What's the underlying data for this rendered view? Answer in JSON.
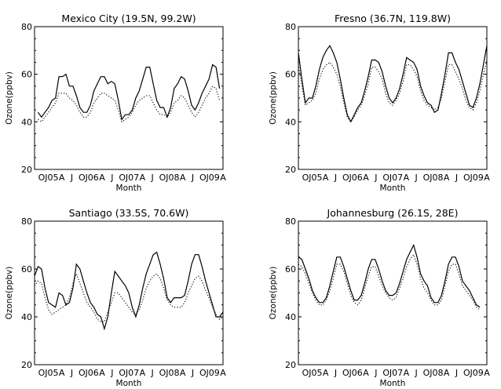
{
  "chart_data": [
    {
      "type": "line",
      "title": "Mexico City (19.5N, 99.2W)",
      "xlabel": "Month",
      "ylabel": "Ozone(ppbv)",
      "ylim": [
        20,
        80
      ],
      "yticks": [
        20,
        40,
        60,
        80
      ],
      "xtick_labels": [
        "O",
        "J05",
        "A",
        "J",
        "O",
        "J06",
        "A",
        "J",
        "O",
        "J07",
        "A",
        "J",
        "O",
        "J08",
        "A",
        "J",
        "O",
        "J09",
        "A"
      ],
      "x_start_tick": 1,
      "series": [
        {
          "style": "solid",
          "values": [
            44,
            42,
            44,
            46,
            49,
            50,
            59,
            59,
            60,
            55,
            55,
            51,
            46,
            44,
            44,
            47,
            53,
            56,
            59,
            59,
            56,
            57,
            56,
            49,
            41,
            43,
            43,
            45,
            50,
            53,
            58,
            63,
            63,
            56,
            49,
            46,
            46,
            42,
            46,
            54,
            56,
            59,
            58,
            53,
            47,
            45,
            48,
            52,
            55,
            58,
            64,
            63,
            54
          ]
        },
        {
          "style": "dotted",
          "values": [
            41,
            40,
            42,
            44,
            46,
            48,
            52,
            52,
            52,
            50,
            49,
            47,
            44,
            42,
            42,
            44,
            48,
            50,
            52,
            52,
            51,
            50,
            49,
            45,
            40,
            41,
            42,
            44,
            47,
            49,
            50,
            51,
            51,
            48,
            45,
            43,
            43,
            42,
            44,
            48,
            49,
            51,
            50,
            47,
            44,
            42,
            44,
            47,
            50,
            52,
            55,
            54,
            49
          ]
        }
      ]
    },
    {
      "type": "line",
      "title": "Fresno (36.7N, 119.8W)",
      "xlabel": "Month",
      "ylabel": "Ozone(ppbv)",
      "ylim": [
        20,
        80
      ],
      "yticks": [
        20,
        40,
        60,
        80
      ],
      "xtick_labels": [
        "O",
        "J05",
        "A",
        "J",
        "O",
        "J06",
        "A",
        "J",
        "O",
        "J07",
        "A",
        "J",
        "O",
        "J08",
        "A",
        "J",
        "O",
        "J09",
        "A"
      ],
      "x_start_tick": 0,
      "series": [
        {
          "style": "solid",
          "values": [
            69,
            58,
            48,
            50,
            50,
            55,
            62,
            67,
            70,
            72,
            69,
            65,
            58,
            50,
            43,
            40,
            43,
            46,
            48,
            53,
            59,
            66,
            66,
            65,
            61,
            55,
            50,
            48,
            50,
            54,
            60,
            67,
            66,
            65,
            62,
            55,
            51,
            48,
            47,
            44,
            45,
            52,
            60,
            69,
            69,
            65,
            62,
            57,
            52,
            47,
            46,
            50,
            56,
            64,
            72,
            80
          ]
        },
        {
          "style": "dotted",
          "values": [
            64,
            55,
            47,
            48,
            49,
            52,
            58,
            62,
            64,
            65,
            63,
            60,
            55,
            48,
            42,
            40,
            42,
            45,
            47,
            51,
            56,
            63,
            63,
            61,
            58,
            52,
            48,
            47,
            49,
            52,
            57,
            64,
            64,
            62,
            59,
            53,
            49,
            47,
            46,
            45,
            46,
            50,
            57,
            64,
            64,
            61,
            58,
            54,
            49,
            46,
            45,
            48,
            53,
            60,
            66,
            69
          ]
        }
      ]
    },
    {
      "type": "line",
      "title": "Santiago (33.5S, 70.6W)",
      "xlabel": "Month",
      "ylabel": "Ozone(ppbv)",
      "ylim": [
        20,
        80
      ],
      "yticks": [
        20,
        40,
        60,
        80
      ],
      "xtick_labels": [
        "O",
        "J05",
        "A",
        "J",
        "O",
        "J06",
        "A",
        "J",
        "O",
        "J07",
        "A",
        "J",
        "O",
        "J08",
        "A",
        "J",
        "O",
        "J09",
        "A"
      ],
      "x_start_tick": 0,
      "series": [
        {
          "style": "solid",
          "values": [
            57,
            61,
            60,
            52,
            46,
            45,
            44,
            50,
            49,
            45,
            46,
            52,
            62,
            60,
            55,
            50,
            46,
            44,
            41,
            40,
            35,
            40,
            50,
            59,
            57,
            55,
            53,
            50,
            44,
            40,
            45,
            52,
            58,
            62,
            66,
            67,
            62,
            56,
            48,
            46,
            48,
            48,
            48,
            49,
            55,
            62,
            66,
            66,
            61,
            55,
            50,
            45,
            40,
            40,
            42
          ]
        },
        {
          "style": "dotted",
          "values": [
            53,
            55,
            54,
            48,
            43,
            41,
            42,
            43,
            44,
            45,
            48,
            54,
            58,
            54,
            50,
            46,
            44,
            42,
            39,
            38,
            38,
            42,
            46,
            50,
            50,
            48,
            46,
            44,
            42,
            41,
            43,
            47,
            52,
            55,
            57,
            58,
            56,
            52,
            47,
            45,
            44,
            44,
            44,
            46,
            50,
            53,
            56,
            57,
            55,
            51,
            48,
            44,
            41,
            39,
            40
          ]
        }
      ]
    },
    {
      "type": "line",
      "title": "Johannesburg (26.1S, 28E)",
      "xlabel": "Month",
      "ylabel": "Ozone(ppbv)",
      "ylim": [
        20,
        80
      ],
      "yticks": [
        20,
        40,
        60,
        80
      ],
      "xtick_labels": [
        "O",
        "J05",
        "A",
        "J",
        "O",
        "J06",
        "A",
        "J",
        "O",
        "J07",
        "A",
        "J",
        "O",
        "J08",
        "A",
        "J",
        "O",
        "J09",
        "A"
      ],
      "x_start_tick": 0,
      "series": [
        {
          "style": "solid",
          "values": [
            65,
            64,
            60,
            56,
            51,
            48,
            46,
            46,
            48,
            53,
            59,
            65,
            65,
            61,
            56,
            51,
            47,
            47,
            49,
            54,
            60,
            64,
            64,
            60,
            55,
            51,
            49,
            49,
            50,
            54,
            59,
            64,
            67,
            70,
            65,
            58,
            55,
            53,
            48,
            46,
            46,
            49,
            55,
            62,
            65,
            65,
            61,
            55,
            53,
            51,
            48,
            45,
            44
          ]
        },
        {
          "style": "dotted",
          "values": [
            62,
            61,
            58,
            54,
            50,
            47,
            45,
            45,
            47,
            51,
            56,
            62,
            62,
            59,
            54,
            49,
            46,
            45,
            47,
            52,
            57,
            61,
            61,
            57,
            53,
            50,
            48,
            47,
            48,
            52,
            56,
            61,
            64,
            66,
            62,
            56,
            52,
            50,
            47,
            45,
            45,
            47,
            53,
            59,
            62,
            62,
            58,
            53,
            51,
            49,
            47,
            44,
            43
          ]
        }
      ]
    }
  ]
}
